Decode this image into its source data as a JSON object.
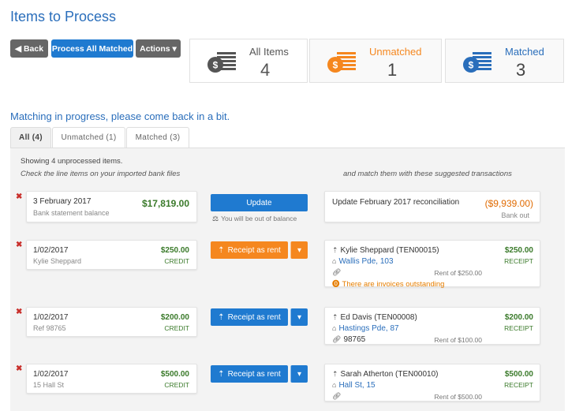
{
  "page_title": "Items to Process",
  "toolbar": {
    "back_label": "◀ Back",
    "process_label": "Process All Matched",
    "actions_label": "Actions ▾"
  },
  "stats": {
    "all": {
      "label": "All Items",
      "count": "4",
      "color": "#555555"
    },
    "unmatched": {
      "label": "Unmatched",
      "count": "1",
      "color": "#f5871f"
    },
    "matched": {
      "label": "Matched",
      "count": "3",
      "color": "#2a6ebb"
    }
  },
  "progress_message": "Matching in progress, please come back in a bit.",
  "tabs": [
    {
      "label": "All (4)"
    },
    {
      "label": "Unmatched (1)"
    },
    {
      "label": "Matched (3)"
    }
  ],
  "panel": {
    "showing": "Showing 4 unprocessed items.",
    "hint_left": "Check the line items on your imported bank files",
    "hint_right": "and match them with these suggested transactions"
  },
  "rows": [
    {
      "date": "3 February 2017",
      "desc": "Bank statement balance",
      "amount": "$17,819.00",
      "action": "Update",
      "action_note": "You will be out of balance",
      "match_title": "Update February 2017 reconciliation",
      "match_amount": "($9,939.00)",
      "match_sub": "Bank out"
    },
    {
      "date": "1/02/2017",
      "desc": "Kylie Sheppard",
      "amount": "$250.00",
      "type": "CREDIT",
      "action": "Receipt as rent",
      "tenant": "Kylie Sheppard (TEN00015)",
      "property": "Wallis Pde, 103",
      "ref": "",
      "rent_note": "Rent of $250.00",
      "match_amount": "$250.00",
      "match_type": "RECEIPT",
      "warning": "There are invoices outstanding"
    },
    {
      "date": "1/02/2017",
      "desc": "Ref 98765",
      "amount": "$200.00",
      "type": "CREDIT",
      "action": "Receipt as rent",
      "tenant": "Ed Davis (TEN00008)",
      "property": "Hastings Pde, 87",
      "ref": "98765",
      "rent_note": "Rent of $100.00",
      "match_amount": "$200.00",
      "match_type": "RECEIPT"
    },
    {
      "date": "1/02/2017",
      "desc": "15 Hall St",
      "amount": "$500.00",
      "type": "CREDIT",
      "action": "Receipt as rent",
      "tenant": "Sarah Atherton (TEN00010)",
      "property": "Hall St, 15",
      "ref": "",
      "rent_note": "Rent of $500.00",
      "match_amount": "$500.00",
      "match_type": "RECEIPT"
    }
  ]
}
